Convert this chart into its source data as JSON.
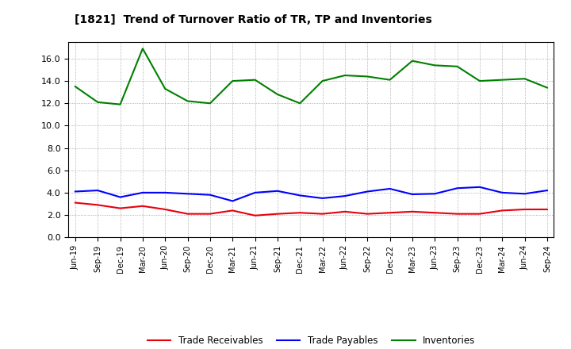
{
  "title": "[1821]  Trend of Turnover Ratio of TR, TP and Inventories",
  "x_labels": [
    "Jun-19",
    "Sep-19",
    "Dec-19",
    "Mar-20",
    "Jun-20",
    "Sep-20",
    "Dec-20",
    "Mar-21",
    "Jun-21",
    "Sep-21",
    "Dec-21",
    "Mar-22",
    "Jun-22",
    "Sep-22",
    "Dec-22",
    "Mar-23",
    "Jun-23",
    "Sep-23",
    "Dec-23",
    "Mar-24",
    "Jun-24",
    "Sep-24"
  ],
  "trade_receivables": [
    3.1,
    2.9,
    2.6,
    2.8,
    2.5,
    2.1,
    2.1,
    2.4,
    1.95,
    2.1,
    2.2,
    2.1,
    2.3,
    2.1,
    2.2,
    2.3,
    2.2,
    2.1,
    2.1,
    2.4,
    2.5,
    2.5
  ],
  "trade_payables": [
    4.1,
    4.2,
    3.6,
    4.0,
    4.0,
    3.9,
    3.8,
    3.25,
    4.0,
    4.15,
    3.75,
    3.5,
    3.7,
    4.1,
    4.35,
    3.85,
    3.9,
    4.4,
    4.5,
    4.0,
    3.9,
    4.2
  ],
  "inventories": [
    13.5,
    12.1,
    11.9,
    16.9,
    13.3,
    12.2,
    12.0,
    14.0,
    14.1,
    12.8,
    12.0,
    14.0,
    14.5,
    14.4,
    14.1,
    15.8,
    15.4,
    15.3,
    14.0,
    14.1,
    14.2,
    13.4
  ],
  "tr_color": "#e8000d",
  "tp_color": "#0000ff",
  "inv_color": "#008000",
  "ylim": [
    0.0,
    17.5
  ],
  "yticks": [
    0.0,
    2.0,
    4.0,
    6.0,
    8.0,
    10.0,
    12.0,
    14.0,
    16.0
  ],
  "legend_labels": [
    "Trade Receivables",
    "Trade Payables",
    "Inventories"
  ],
  "background_color": "#ffffff",
  "grid_color": "#999999"
}
